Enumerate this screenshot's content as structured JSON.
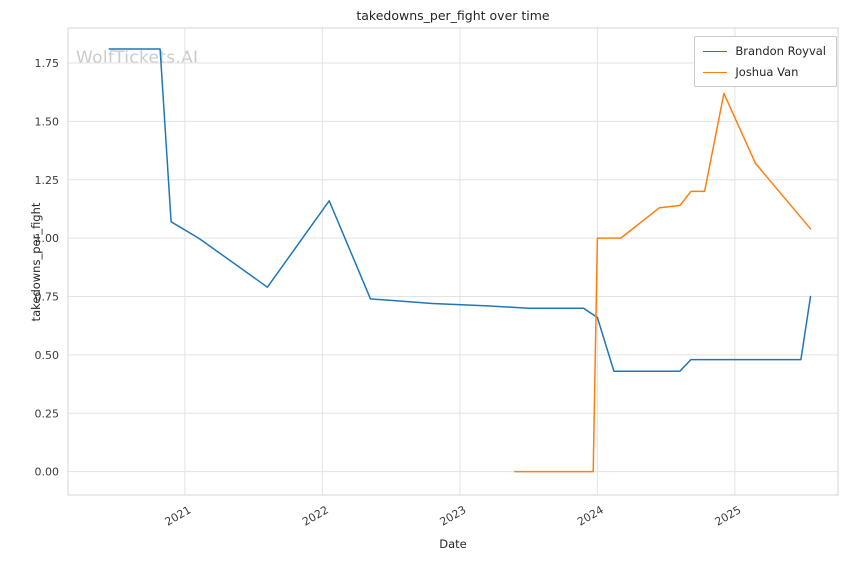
{
  "watermark": "WolfTickets.AI",
  "chart_data": {
    "type": "line",
    "title": "takedowns_per_fight over time",
    "xlabel": "Date",
    "ylabel": "takedowns_per_fight",
    "xlim": [
      2020.15,
      2025.75
    ],
    "ylim": [
      -0.1,
      1.9
    ],
    "xticks": [
      2021,
      2022,
      2023,
      2024,
      2025
    ],
    "yticks": [
      0.0,
      0.25,
      0.5,
      0.75,
      1.0,
      1.25,
      1.5,
      1.75
    ],
    "grid": true,
    "legend_position": "upper right",
    "colors": {
      "grid": "#e3e3e3",
      "axes_border": "#d5d5d5",
      "series1": "#1f77b4",
      "series2": "#ff7f0e"
    },
    "series": [
      {
        "name": "Brandon Royval",
        "color": "#1f77b4",
        "points": [
          [
            2020.45,
            1.81
          ],
          [
            2020.82,
            1.81
          ],
          [
            2020.9,
            1.07
          ],
          [
            2021.1,
            1.0
          ],
          [
            2021.6,
            0.79
          ],
          [
            2022.05,
            1.16
          ],
          [
            2022.35,
            0.74
          ],
          [
            2022.8,
            0.72
          ],
          [
            2023.2,
            0.71
          ],
          [
            2023.5,
            0.7
          ],
          [
            2023.9,
            0.7
          ],
          [
            2024.0,
            0.66
          ],
          [
            2024.12,
            0.43
          ],
          [
            2024.6,
            0.43
          ],
          [
            2024.68,
            0.48
          ],
          [
            2025.48,
            0.48
          ],
          [
            2025.55,
            0.75
          ]
        ]
      },
      {
        "name": "Joshua Van",
        "color": "#ff7f0e",
        "points": [
          [
            2023.4,
            0.0
          ],
          [
            2023.97,
            0.0
          ],
          [
            2024.0,
            1.0
          ],
          [
            2024.17,
            1.0
          ],
          [
            2024.45,
            1.13
          ],
          [
            2024.6,
            1.14
          ],
          [
            2024.68,
            1.2
          ],
          [
            2024.78,
            1.2
          ],
          [
            2024.92,
            1.62
          ],
          [
            2025.15,
            1.32
          ],
          [
            2025.55,
            1.04
          ]
        ]
      }
    ]
  }
}
